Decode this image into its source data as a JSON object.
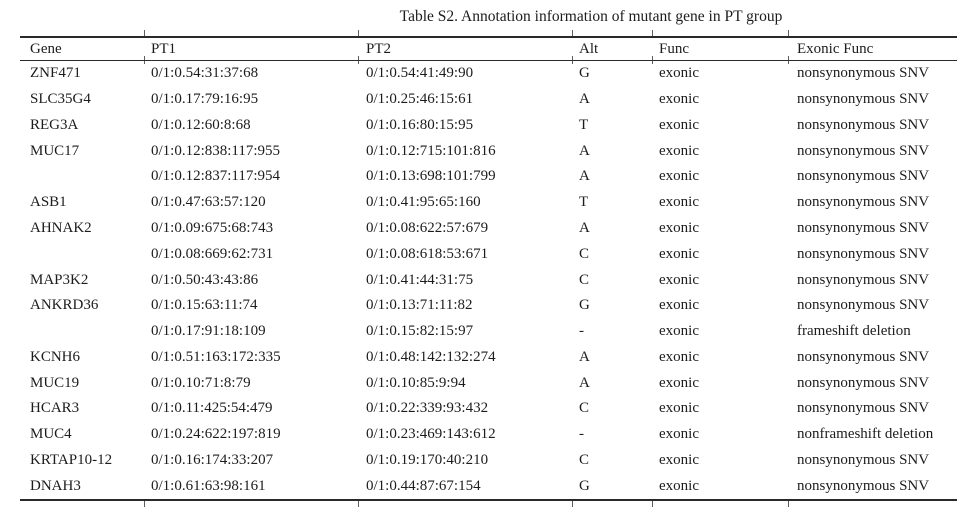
{
  "title": "Table S2. Annotation information of mutant gene in PT group",
  "colors": {
    "line": "#2a2a2a",
    "text": "#1c1c1c",
    "background": "#ffffff"
  },
  "table": {
    "columns": [
      "Gene",
      "PT1",
      "PT2",
      "Alt",
      "Func",
      "Exonic Func"
    ],
    "rows": [
      [
        "ZNF471",
        "0/1:0.54:31:37:68",
        "0/1:0.54:41:49:90",
        "G",
        "exonic",
        "nonsynonymous SNV"
      ],
      [
        "SLC35G4",
        "0/1:0.17:79:16:95",
        "0/1:0.25:46:15:61",
        "A",
        "exonic",
        "nonsynonymous SNV"
      ],
      [
        "REG3A",
        "0/1:0.12:60:8:68",
        "0/1:0.16:80:15:95",
        "T",
        "exonic",
        "nonsynonymous SNV"
      ],
      [
        "MUC17",
        "0/1:0.12:838:117:955",
        "0/1:0.12:715:101:816",
        "A",
        "exonic",
        "nonsynonymous SNV"
      ],
      [
        "",
        "0/1:0.12:837:117:954",
        "0/1:0.13:698:101:799",
        "A",
        "exonic",
        "nonsynonymous SNV"
      ],
      [
        "ASB1",
        "0/1:0.47:63:57:120",
        "0/1:0.41:95:65:160",
        "T",
        "exonic",
        "nonsynonymous SNV"
      ],
      [
        "AHNAK2",
        "0/1:0.09:675:68:743",
        "0/1:0.08:622:57:679",
        "A",
        "exonic",
        "nonsynonymous SNV"
      ],
      [
        "",
        "0/1:0.08:669:62:731",
        "0/1:0.08:618:53:671",
        "C",
        "exonic",
        "nonsynonymous SNV"
      ],
      [
        "MAP3K2",
        "0/1:0.50:43:43:86",
        "0/1:0.41:44:31:75",
        "C",
        "exonic",
        "nonsynonymous SNV"
      ],
      [
        "ANKRD36",
        "0/1:0.15:63:11:74",
        "0/1:0.13:71:11:82",
        "G",
        "exonic",
        "nonsynonymous SNV"
      ],
      [
        "",
        "0/1:0.17:91:18:109",
        "0/1:0.15:82:15:97",
        "-",
        "exonic",
        "frameshift deletion"
      ],
      [
        "KCNH6",
        "0/1:0.51:163:172:335",
        "0/1:0.48:142:132:274",
        "A",
        "exonic",
        "nonsynonymous SNV"
      ],
      [
        "MUC19",
        "0/1:0.10:71:8:79",
        "0/1:0.10:85:9:94",
        "A",
        "exonic",
        "nonsynonymous SNV"
      ],
      [
        "HCAR3",
        "0/1:0.11:425:54:479",
        "0/1:0.22:339:93:432",
        "C",
        "exonic",
        "nonsynonymous SNV"
      ],
      [
        "MUC4",
        "0/1:0.24:622:197:819",
        "0/1:0.23:469:143:612",
        "-",
        "exonic",
        "nonframeshift deletion"
      ],
      [
        "KRTAP10-12",
        "0/1:0.16:174:33:207",
        "0/1:0.19:170:40:210",
        "C",
        "exonic",
        "nonsynonymous SNV"
      ],
      [
        "DNAH3",
        "0/1:0.61:63:98:161",
        "0/1:0.44:87:67:154",
        "G",
        "exonic",
        "nonsynonymous SNV"
      ]
    ]
  }
}
